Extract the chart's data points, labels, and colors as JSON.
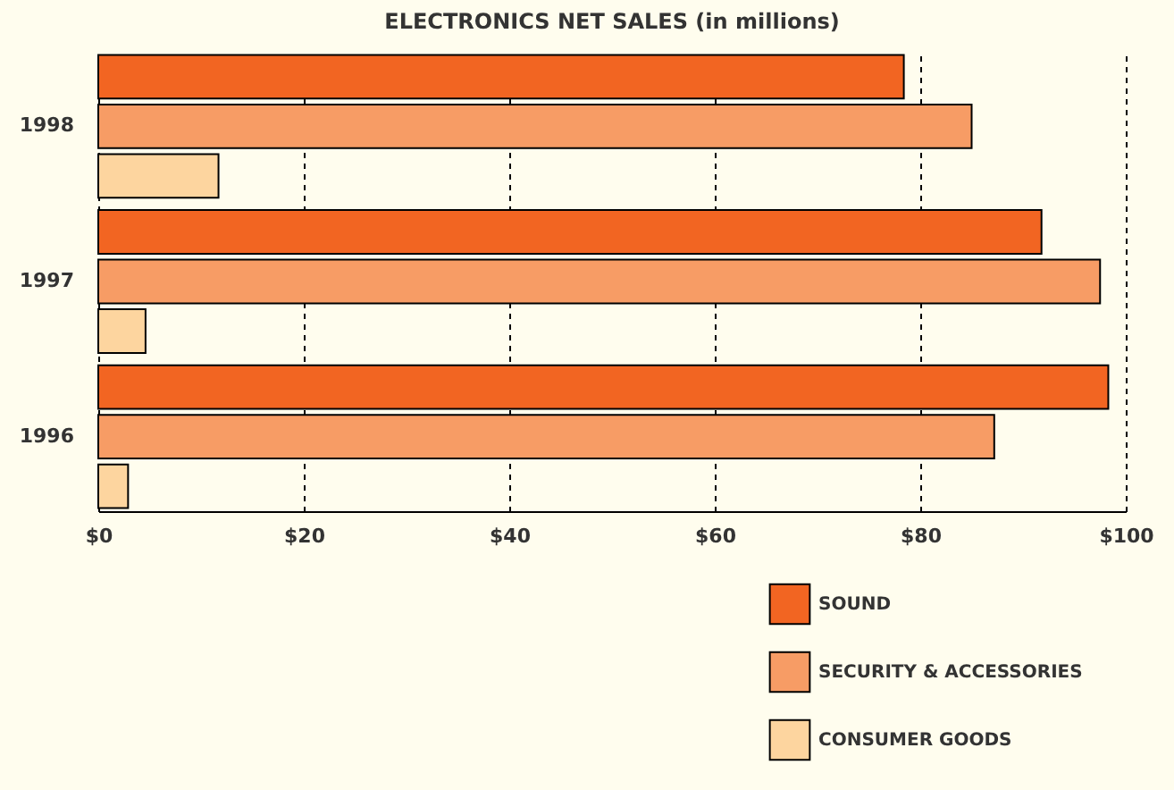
{
  "chart_data": {
    "type": "bar",
    "orientation": "horizontal",
    "title": "ELECTRONICS NET SALES (in millions)",
    "categories": [
      "1998",
      "1997",
      "1996"
    ],
    "series": [
      {
        "name": "SOUND",
        "color": "#f26522",
        "values": [
          78.4,
          91.8,
          98.3
        ]
      },
      {
        "name": "SECURITY & ACCESSORIES",
        "color": "#f79c65",
        "values": [
          85.0,
          97.5,
          87.2
        ]
      },
      {
        "name": "CONSUMER GOODS",
        "color": "#fdd59f",
        "values": [
          11.7,
          4.6,
          2.9
        ]
      }
    ],
    "xlim": [
      0,
      100
    ],
    "xticks": [
      {
        "value": 0,
        "label": "$0"
      },
      {
        "value": 20,
        "label": "$20"
      },
      {
        "value": 40,
        "label": "$40"
      },
      {
        "value": 60,
        "label": "$60"
      },
      {
        "value": 80,
        "label": "$80"
      },
      {
        "value": 100,
        "label": "$100"
      }
    ],
    "grid": "x",
    "legend": "bottom right"
  }
}
